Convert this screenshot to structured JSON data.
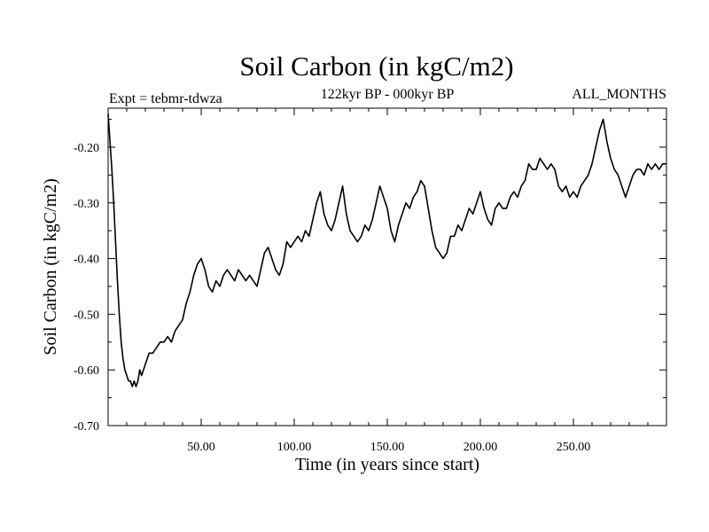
{
  "chart_data": {
    "type": "line",
    "title": "Soil Carbon (in kgC/m2)",
    "subtitle_left": "Expt = tebmr-tdwza",
    "subtitle_center": "122kyr BP - 000kyr BP",
    "subtitle_right": "ALL_MONTHS",
    "xlabel": "Time (in years since start)",
    "ylabel": "Soil Carbon (in kgC/m2)",
    "xlim": [
      0,
      300
    ],
    "ylim": [
      -0.7,
      -0.13
    ],
    "xticks": [
      {
        "value": 50,
        "label": "50.00"
      },
      {
        "value": 100,
        "label": "100.00"
      },
      {
        "value": 150,
        "label": "150.00"
      },
      {
        "value": 200,
        "label": "200.00"
      },
      {
        "value": 250,
        "label": "250.00"
      }
    ],
    "yticks": [
      {
        "value": -0.2,
        "label": "-0.20"
      },
      {
        "value": -0.3,
        "label": "-0.30"
      },
      {
        "value": -0.4,
        "label": "-0.40"
      },
      {
        "value": -0.5,
        "label": "-0.50"
      },
      {
        "value": -0.6,
        "label": "-0.60"
      },
      {
        "value": -0.7,
        "label": "-0.70"
      }
    ],
    "series": [
      {
        "name": "Soil Carbon",
        "color": "#000000",
        "x": [
          0,
          1,
          2,
          3,
          4,
          5,
          6,
          7,
          8,
          9,
          10,
          11,
          12,
          13,
          14,
          15,
          16,
          17,
          18,
          20,
          22,
          24,
          26,
          28,
          30,
          32,
          34,
          36,
          38,
          40,
          42,
          44,
          46,
          48,
          50,
          52,
          54,
          56,
          58,
          60,
          62,
          64,
          66,
          68,
          70,
          72,
          74,
          76,
          78,
          80,
          82,
          84,
          86,
          88,
          90,
          92,
          94,
          96,
          98,
          100,
          102,
          104,
          106,
          108,
          110,
          112,
          114,
          116,
          118,
          120,
          122,
          124,
          126,
          128,
          130,
          132,
          134,
          136,
          138,
          140,
          142,
          144,
          146,
          148,
          150,
          152,
          154,
          156,
          158,
          160,
          162,
          164,
          166,
          168,
          170,
          172,
          174,
          176,
          178,
          180,
          182,
          184,
          186,
          188,
          190,
          192,
          194,
          196,
          198,
          200,
          202,
          204,
          206,
          208,
          210,
          212,
          214,
          216,
          218,
          220,
          222,
          224,
          226,
          228,
          230,
          232,
          234,
          236,
          238,
          240,
          242,
          244,
          246,
          248,
          250,
          252,
          254,
          256,
          258,
          260,
          262,
          264,
          266,
          268,
          270,
          272,
          274,
          276,
          278,
          280,
          282,
          284,
          286,
          288,
          290,
          292,
          294,
          296,
          298,
          300
        ],
        "y": [
          -0.14,
          -0.19,
          -0.24,
          -0.3,
          -0.37,
          -0.44,
          -0.5,
          -0.55,
          -0.58,
          -0.6,
          -0.61,
          -0.62,
          -0.62,
          -0.63,
          -0.62,
          -0.63,
          -0.62,
          -0.6,
          -0.61,
          -0.59,
          -0.57,
          -0.57,
          -0.56,
          -0.55,
          -0.55,
          -0.54,
          -0.55,
          -0.53,
          -0.52,
          -0.51,
          -0.48,
          -0.46,
          -0.43,
          -0.41,
          -0.4,
          -0.42,
          -0.45,
          -0.46,
          -0.44,
          -0.45,
          -0.43,
          -0.42,
          -0.43,
          -0.44,
          -0.42,
          -0.43,
          -0.44,
          -0.43,
          -0.44,
          -0.45,
          -0.42,
          -0.39,
          -0.38,
          -0.4,
          -0.42,
          -0.43,
          -0.41,
          -0.37,
          -0.38,
          -0.37,
          -0.36,
          -0.37,
          -0.35,
          -0.36,
          -0.33,
          -0.3,
          -0.28,
          -0.32,
          -0.34,
          -0.35,
          -0.33,
          -0.3,
          -0.27,
          -0.32,
          -0.35,
          -0.36,
          -0.37,
          -0.36,
          -0.34,
          -0.35,
          -0.33,
          -0.3,
          -0.27,
          -0.29,
          -0.31,
          -0.35,
          -0.37,
          -0.34,
          -0.32,
          -0.3,
          -0.31,
          -0.29,
          -0.28,
          -0.26,
          -0.27,
          -0.31,
          -0.35,
          -0.38,
          -0.39,
          -0.4,
          -0.39,
          -0.36,
          -0.36,
          -0.34,
          -0.35,
          -0.33,
          -0.31,
          -0.32,
          -0.3,
          -0.28,
          -0.31,
          -0.33,
          -0.34,
          -0.31,
          -0.3,
          -0.31,
          -0.31,
          -0.29,
          -0.28,
          -0.29,
          -0.27,
          -0.26,
          -0.23,
          -0.24,
          -0.24,
          -0.22,
          -0.23,
          -0.24,
          -0.23,
          -0.24,
          -0.27,
          -0.28,
          -0.27,
          -0.29,
          -0.28,
          -0.29,
          -0.27,
          -0.26,
          -0.25,
          -0.23,
          -0.2,
          -0.17,
          -0.15,
          -0.19,
          -0.22,
          -0.24,
          -0.25,
          -0.27,
          -0.29,
          -0.27,
          -0.25,
          -0.24,
          -0.24,
          -0.25,
          -0.23,
          -0.24,
          -0.23,
          -0.24,
          -0.23,
          -0.23
        ]
      }
    ]
  }
}
